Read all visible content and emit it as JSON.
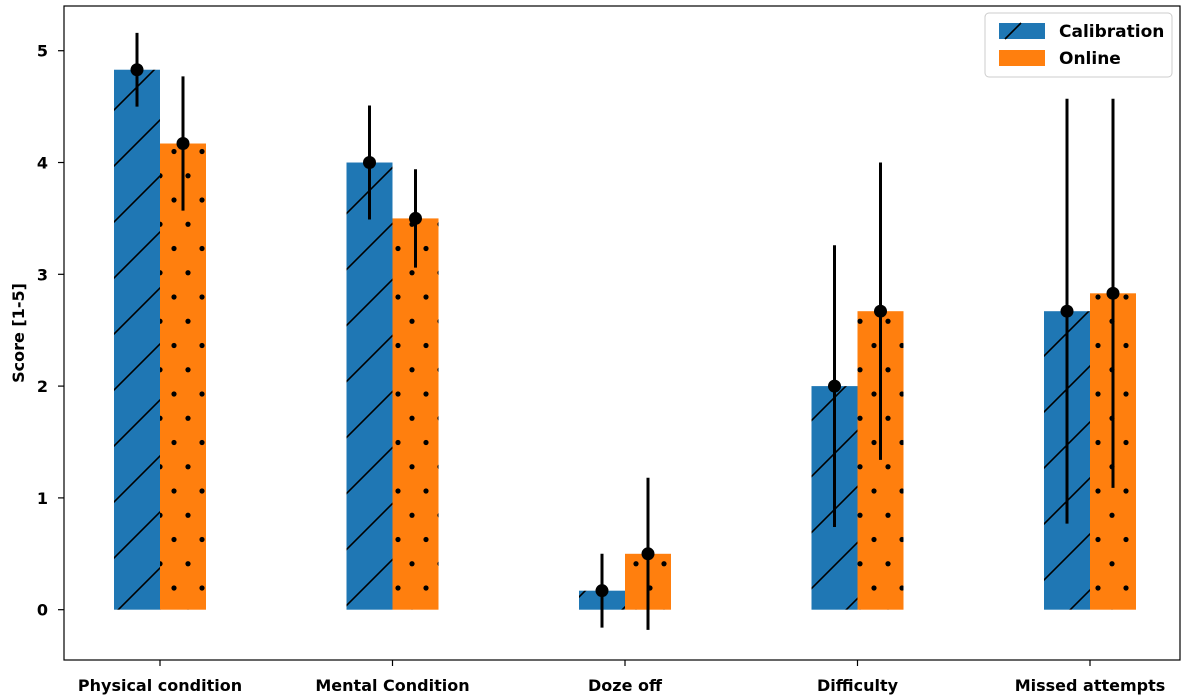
{
  "chart_data": {
    "type": "bar",
    "title": "",
    "xlabel": "",
    "ylabel": "Score [1-5]",
    "ylim": [
      -0.45,
      5.4
    ],
    "yticks": [
      0,
      1,
      2,
      3,
      4,
      5
    ],
    "grid": false,
    "legend_position": "top-right",
    "categories": [
      "Physical condition",
      "Mental Condition",
      "Doze off",
      "Difficulty",
      "Missed attempts"
    ],
    "series": [
      {
        "name": "Calibration",
        "color": "#1f77b4",
        "pattern": "diagonal-hatch",
        "values": [
          4.83,
          4.0,
          0.17,
          2.0,
          2.67
        ],
        "error": [
          0.33,
          0.51,
          0.33,
          1.26,
          1.9
        ]
      },
      {
        "name": "Online",
        "color": "#ff7f0e",
        "pattern": "dots",
        "values": [
          4.17,
          3.5,
          0.5,
          2.67,
          2.83
        ],
        "error": [
          0.6,
          0.44,
          0.68,
          1.33,
          1.74
        ]
      }
    ]
  }
}
